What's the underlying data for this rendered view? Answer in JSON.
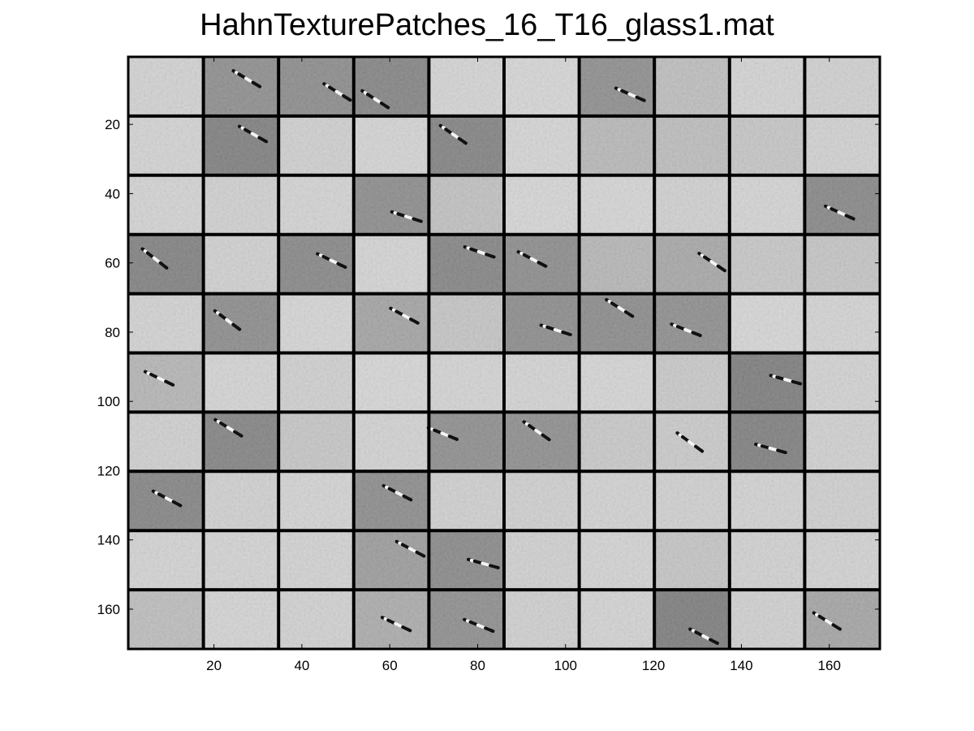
{
  "title": "HahnTexturePatches_16_T16_glass1.mat",
  "image_grid": {
    "rows": 10,
    "cols": 10,
    "x_ticks": [
      "20",
      "40",
      "60",
      "80",
      "100",
      "120",
      "140",
      "160"
    ],
    "y_ticks": [
      "20",
      "40",
      "60",
      "80",
      "100",
      "120",
      "140",
      "160"
    ],
    "patches": [
      [
        {
          "bg": "#d2d2d2",
          "s": 0
        },
        {
          "bg": "#8c8c8c",
          "s": 1
        },
        {
          "bg": "#8a8a8a",
          "s": 1
        },
        {
          "bg": "#828282",
          "s": 1
        },
        {
          "bg": "#d4d4d4",
          "s": 0
        },
        {
          "bg": "#d6d6d6",
          "s": 0
        },
        {
          "bg": "#8c8c8c",
          "s": 1
        },
        {
          "bg": "#bdbdbd",
          "s": 0
        },
        {
          "bg": "#d3d3d3",
          "s": 0
        },
        {
          "bg": "#d0d0d0",
          "s": 0
        }
      ],
      [
        {
          "bg": "#d3d3d3",
          "s": 0
        },
        {
          "bg": "#7d7d7d",
          "s": 1
        },
        {
          "bg": "#cfcfcf",
          "s": 0
        },
        {
          "bg": "#d4d4d4",
          "s": 0
        },
        {
          "bg": "#808080",
          "s": 1
        },
        {
          "bg": "#d5d5d5",
          "s": 0
        },
        {
          "bg": "#b7b7b7",
          "s": 0
        },
        {
          "bg": "#bcbcbc",
          "s": 0
        },
        {
          "bg": "#c5c5c5",
          "s": 0
        },
        {
          "bg": "#d1d1d1",
          "s": 0
        }
      ],
      [
        {
          "bg": "#d3d3d3",
          "s": 0
        },
        {
          "bg": "#d0d0d0",
          "s": 0
        },
        {
          "bg": "#d3d3d3",
          "s": 0
        },
        {
          "bg": "#8a8a8a",
          "s": 1
        },
        {
          "bg": "#c0c0c0",
          "s": 0
        },
        {
          "bg": "#d6d6d6",
          "s": 0
        },
        {
          "bg": "#d5d5d5",
          "s": 0
        },
        {
          "bg": "#d0d0d0",
          "s": 0
        },
        {
          "bg": "#d4d4d4",
          "s": 0
        },
        {
          "bg": "#858585",
          "s": 1
        }
      ],
      [
        {
          "bg": "#7f7f7f",
          "s": 1
        },
        {
          "bg": "#d0d0d0",
          "s": 0
        },
        {
          "bg": "#858585",
          "s": 1
        },
        {
          "bg": "#d4d4d4",
          "s": 0
        },
        {
          "bg": "#828282",
          "s": 1
        },
        {
          "bg": "#8a8a8a",
          "s": 1
        },
        {
          "bg": "#b5b5b5",
          "s": 0
        },
        {
          "bg": "#a6a6a6",
          "s": 1
        },
        {
          "bg": "#c6c6c6",
          "s": 0
        },
        {
          "bg": "#c4c4c4",
          "s": 0
        }
      ],
      [
        {
          "bg": "#d2d2d2",
          "s": 0
        },
        {
          "bg": "#8a8a8a",
          "s": 1
        },
        {
          "bg": "#d5d5d5",
          "s": 0
        },
        {
          "bg": "#a2a2a2",
          "s": 1
        },
        {
          "bg": "#c4c4c4",
          "s": 0
        },
        {
          "bg": "#8a8a8a",
          "s": 1
        },
        {
          "bg": "#898989",
          "s": 1
        },
        {
          "bg": "#8c8c8c",
          "s": 1
        },
        {
          "bg": "#d6d6d6",
          "s": 0
        },
        {
          "bg": "#d3d3d3",
          "s": 0
        }
      ],
      [
        {
          "bg": "#b4b4b4",
          "s": 1
        },
        {
          "bg": "#d4d4d4",
          "s": 0
        },
        {
          "bg": "#cfcfcf",
          "s": 0
        },
        {
          "bg": "#d6d6d6",
          "s": 0
        },
        {
          "bg": "#d3d3d3",
          "s": 0
        },
        {
          "bg": "#d3d3d3",
          "s": 0
        },
        {
          "bg": "#d5d5d5",
          "s": 0
        },
        {
          "bg": "#c8c8c8",
          "s": 0
        },
        {
          "bg": "#7b7b7b",
          "s": 1
        },
        {
          "bg": "#d2d2d2",
          "s": 0
        }
      ],
      [
        {
          "bg": "#cfcfcf",
          "s": 0
        },
        {
          "bg": "#818181",
          "s": 1
        },
        {
          "bg": "#c5c5c5",
          "s": 0
        },
        {
          "bg": "#d2d2d2",
          "s": 0
        },
        {
          "bg": "#8c8c8c",
          "s": 1
        },
        {
          "bg": "#8c8c8c",
          "s": 1
        },
        {
          "bg": "#c8c8c8",
          "s": 0
        },
        {
          "bg": "#c9c9c9",
          "s": 1
        },
        {
          "bg": "#7d7d7d",
          "s": 1
        },
        {
          "bg": "#d0d0d0",
          "s": 0
        }
      ],
      [
        {
          "bg": "#828282",
          "s": 1
        },
        {
          "bg": "#d0d0d0",
          "s": 0
        },
        {
          "bg": "#d3d3d3",
          "s": 0
        },
        {
          "bg": "#8a8a8a",
          "s": 1
        },
        {
          "bg": "#cfcfcf",
          "s": 0
        },
        {
          "bg": "#cfcfcf",
          "s": 0
        },
        {
          "bg": "#d2d2d2",
          "s": 0
        },
        {
          "bg": "#d0d0d0",
          "s": 0
        },
        {
          "bg": "#d2d2d2",
          "s": 0
        },
        {
          "bg": "#cfcfcf",
          "s": 0
        }
      ],
      [
        {
          "bg": "#d3d3d3",
          "s": 0
        },
        {
          "bg": "#d3d3d3",
          "s": 0
        },
        {
          "bg": "#d2d2d2",
          "s": 0
        },
        {
          "bg": "#9a9a9a",
          "s": 1
        },
        {
          "bg": "#878787",
          "s": 1
        },
        {
          "bg": "#d0d0d0",
          "s": 0
        },
        {
          "bg": "#d3d3d3",
          "s": 0
        },
        {
          "bg": "#c4c4c4",
          "s": 0
        },
        {
          "bg": "#d1d1d1",
          "s": 0
        },
        {
          "bg": "#d2d2d2",
          "s": 0
        }
      ],
      [
        {
          "bg": "#bcbcbc",
          "s": 0
        },
        {
          "bg": "#d4d4d4",
          "s": 0
        },
        {
          "bg": "#d1d1d1",
          "s": 0
        },
        {
          "bg": "#aaaaaa",
          "s": 1
        },
        {
          "bg": "#8c8c8c",
          "s": 1
        },
        {
          "bg": "#cfcfcf",
          "s": 0
        },
        {
          "bg": "#d3d3d3",
          "s": 0
        },
        {
          "bg": "#7b7b7b",
          "s": 1
        },
        {
          "bg": "#d0d0d0",
          "s": 0
        },
        {
          "bg": "#a3a3a3",
          "s": 1
        }
      ]
    ]
  }
}
